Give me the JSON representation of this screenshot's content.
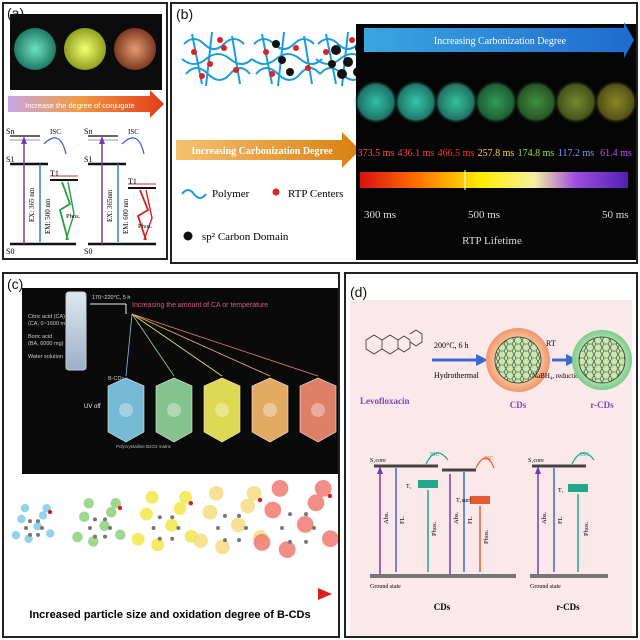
{
  "panel_a": {
    "label": "(a)",
    "arrow_text": "Increase the degree of conjugate",
    "dots": [
      "#4fc9a6",
      "#d9e84a",
      "#c8795a"
    ],
    "left_levels": {
      "s1": "S1",
      "sn": "Sn",
      "s0": "S0",
      "t1": "T1",
      "isc": "ISC",
      "ex": "EX: 365 nm",
      "em": "EM: 500 nm",
      "phos": "Phos."
    },
    "right_levels": {
      "s1": "S1",
      "sn": "Sn",
      "s0": "S0",
      "t1": "T1",
      "isc": "ISC",
      "ex": "EX: 365nm",
      "em": "EM: 600 nm",
      "phos": "Phos."
    }
  },
  "panel_b": {
    "label": "(b)",
    "top_arrow": "Increasing Carbonization Degree",
    "left_arrow": "Increasing Carbonization Degree",
    "legend_polymer": "Polymer",
    "legend_rtp": "RTP Centers",
    "legend_sp2": "sp² Carbon Domain",
    "lifetimes": [
      {
        "value": "373.5 ms",
        "color": "#ff5050",
        "dot": "#2fbfa8"
      },
      {
        "value": "436.1 ms",
        "color": "#ff4040",
        "dot": "#35c6ae"
      },
      {
        "value": "466.5 ms",
        "color": "#ff3030",
        "dot": "#35c0a0"
      },
      {
        "value": "257.8 ms",
        "color": "#ffd23a",
        "dot": "#2f9c56"
      },
      {
        "value": "174.8 ms",
        "color": "#9ee040",
        "dot": "#3f8f3c"
      },
      {
        "value": "117.2 ms",
        "color": "#7a9cff",
        "dot": "#738a2c"
      },
      {
        "value": "61.4 ms",
        "color": "#b455ff",
        "dot": "#8a8624"
      }
    ],
    "scale_left": "300 ms",
    "scale_mid": "500 ms",
    "scale_right": "50 ms",
    "scale_title": "RTP Lifetime"
  },
  "panel_c": {
    "label": "(c)",
    "reagent1": "Citric acid (CA)",
    "reagent1_amt": "(CA, 0~1600 mg)",
    "reagent2": "Boric acid",
    "reagent2_amt": "(BA, 6000 mg)",
    "reagent3": "Water solution",
    "condition": "170~220°C, 5 h",
    "increase_text": "Increasing the amount of CA or temperature",
    "bcds": "B-CDs",
    "uv_off": "UV off",
    "matrix": "Polycrystalline B2O3 matrix",
    "crystals": [
      "#7fc8e6",
      "#8fd39a",
      "#f2ea5a",
      "#f6b86a",
      "#f08a70"
    ],
    "cluster_colors": [
      "#7fcbe6",
      "#8fd07a",
      "#f2e84a",
      "#f6dc80",
      "#f07a70"
    ],
    "bottom_text": "Increased particle size and oxidation degree of B-CDs"
  },
  "panel_d": {
    "label": "(d)",
    "reactant": "Levofloxacin",
    "cond1": "200°C, 6 h",
    "cond1b": "Hydrothermal",
    "cond2": "RT",
    "cond2b": "NaBH₄, reduction",
    "product1": "CDs",
    "product2": "r-CDs",
    "levels": {
      "s1": "S₁core",
      "t1": "T₁",
      "t1s": "T₁surf",
      "isc": "ISC",
      "abs": "Abs.",
      "fl": "FL",
      "phos": "Phos.",
      "ground": "Ground state"
    },
    "caption1": "CDs",
    "caption2": "r-CDs"
  }
}
